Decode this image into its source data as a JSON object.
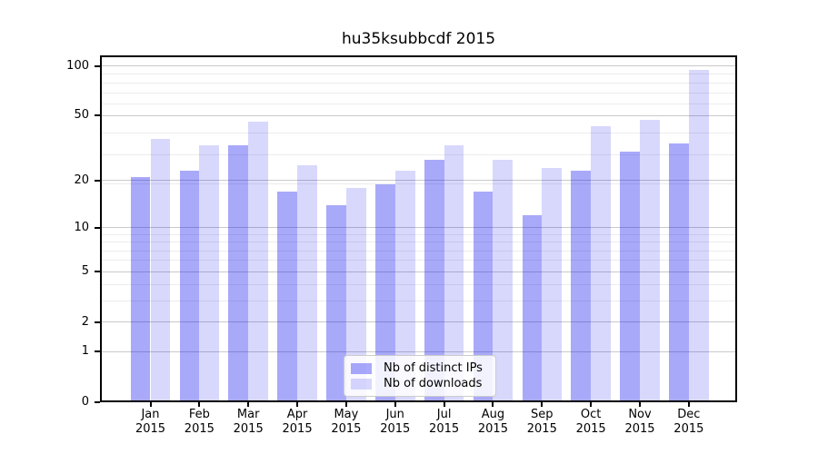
{
  "chart_data": {
    "type": "bar",
    "title": "hu35ksubbcdf 2015",
    "months": [
      "Jan",
      "Feb",
      "Mar",
      "Apr",
      "May",
      "Jun",
      "Jul",
      "Aug",
      "Sep",
      "Oct",
      "Nov",
      "Dec"
    ],
    "year": "2015",
    "series": [
      {
        "name": "Nb of distinct IPs",
        "color": "rgba(10,10,240,0.35)",
        "values": [
          21,
          23,
          33,
          17,
          14,
          19,
          27,
          17,
          12,
          23,
          30,
          34
        ]
      },
      {
        "name": "Nb of downloads",
        "color": "rgba(10,10,240,0.16)",
        "values": [
          36,
          33,
          46,
          25,
          18,
          23,
          33,
          27,
          24,
          43,
          47,
          95
        ]
      }
    ],
    "yscale": "log1p",
    "ylim": [
      0,
      116
    ],
    "y_ticks": [
      100,
      50,
      20,
      10,
      5,
      2,
      1,
      0
    ],
    "y_minor_gridlines": [
      3,
      4,
      6,
      7,
      8,
      9,
      19,
      29,
      39,
      59,
      69,
      79,
      89
    ],
    "grid": true,
    "legend_position": "lower center",
    "colors": {
      "grid_major": "#c9c9c9",
      "grid_minor": "#ececec",
      "axis": "#000000",
      "text": "#000000",
      "legend_border": "#cccccc"
    }
  }
}
